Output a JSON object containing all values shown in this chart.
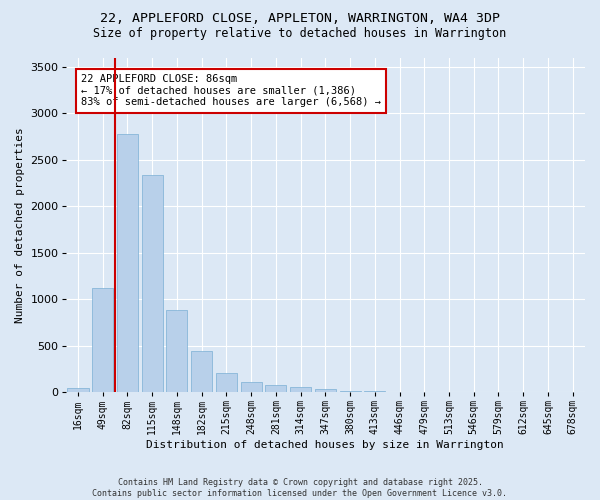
{
  "title_line1": "22, APPLEFORD CLOSE, APPLETON, WARRINGTON, WA4 3DP",
  "title_line2": "Size of property relative to detached houses in Warrington",
  "xlabel": "Distribution of detached houses by size in Warrington",
  "ylabel": "Number of detached properties",
  "categories": [
    "16sqm",
    "49sqm",
    "82sqm",
    "115sqm",
    "148sqm",
    "182sqm",
    "215sqm",
    "248sqm",
    "281sqm",
    "314sqm",
    "347sqm",
    "380sqm",
    "413sqm",
    "446sqm",
    "479sqm",
    "513sqm",
    "546sqm",
    "579sqm",
    "612sqm",
    "645sqm",
    "678sqm"
  ],
  "values": [
    50,
    1120,
    2780,
    2340,
    880,
    440,
    205,
    105,
    80,
    55,
    30,
    15,
    10,
    5,
    5,
    2,
    2,
    1,
    1,
    0,
    0
  ],
  "bar_color": "#b8d0ea",
  "bar_edgecolor": "#7aafd4",
  "ylim": [
    0,
    3600
  ],
  "yticks": [
    0,
    500,
    1000,
    1500,
    2000,
    2500,
    3000,
    3500
  ],
  "vline_index": 2,
  "vline_color": "#cc0000",
  "annotation_line1": "22 APPLEFORD CLOSE: 86sqm",
  "annotation_line2": "← 17% of detached houses are smaller (1,386)",
  "annotation_line3": "83% of semi-detached houses are larger (6,568) →",
  "bg_color": "#dce8f5",
  "plot_bg_color": "#dce8f5",
  "footer_line1": "Contains HM Land Registry data © Crown copyright and database right 2025.",
  "footer_line2": "Contains public sector information licensed under the Open Government Licence v3.0.",
  "title_fontsize": 9.5,
  "subtitle_fontsize": 8.5,
  "tick_fontsize": 7,
  "label_fontsize": 8,
  "annotation_fontsize": 7.5,
  "footer_fontsize": 6
}
